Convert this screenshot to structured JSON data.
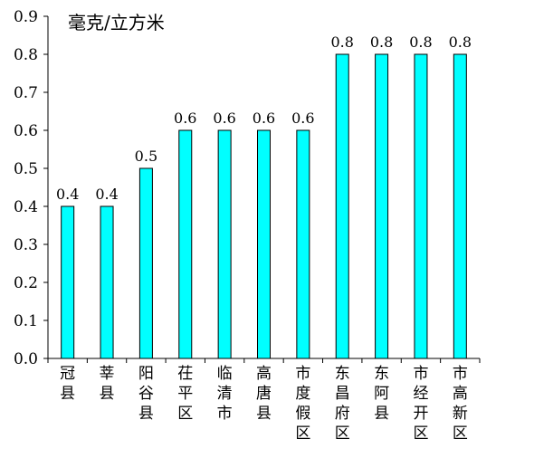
{
  "chart_data": {
    "type": "bar",
    "unit_label": "毫克/立方米",
    "categories": [
      "冠县",
      "莘县",
      "阳谷县",
      "茌平区",
      "临清市",
      "高唐县",
      "市度假区",
      "东昌府区",
      "东阿县",
      "市经开区",
      "市高新区"
    ],
    "values": [
      0.4,
      0.4,
      0.5,
      0.6,
      0.6,
      0.6,
      0.6,
      0.8,
      0.8,
      0.8,
      0.8
    ],
    "value_labels": [
      "0.4",
      "0.4",
      "0.5",
      "0.6",
      "0.6",
      "0.6",
      "0.6",
      "0.8",
      "0.8",
      "0.8",
      "0.8"
    ],
    "y_ticks": [
      "0.0",
      "0.1",
      "0.2",
      "0.3",
      "0.4",
      "0.5",
      "0.6",
      "0.7",
      "0.8",
      "0.9"
    ],
    "ylim": [
      0,
      0.9
    ],
    "grid": false,
    "bar_color": "#00FFFF",
    "bar_edge_color": "#000000"
  }
}
